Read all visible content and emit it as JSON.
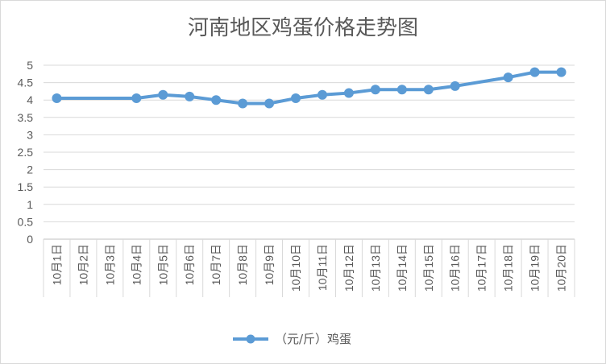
{
  "chart_data": {
    "type": "line",
    "title": "河南地区鸡蛋价格走势图",
    "xlabel": "",
    "ylabel": "",
    "categories": [
      "10月1日",
      "10月2日",
      "10月3日",
      "10月4日",
      "10月5日",
      "10月6日",
      "10月7日",
      "10月8日",
      "10月9日",
      "10月10日",
      "10月11日",
      "10月12日",
      "10月13日",
      "10月14日",
      "10月15日",
      "10月16日",
      "10月17日",
      "10月18日",
      "10月19日",
      "10月20日"
    ],
    "series": [
      {
        "name": "（元/斤）鸡蛋",
        "values": [
          4.05,
          null,
          null,
          4.05,
          4.15,
          4.1,
          4.0,
          3.9,
          3.9,
          4.05,
          4.15,
          4.2,
          4.3,
          4.3,
          4.3,
          4.4,
          null,
          4.65,
          4.8,
          4.8
        ]
      }
    ],
    "ylim": [
      0,
      5
    ],
    "yticks": [
      "0",
      "0.5",
      "1",
      "1.5",
      "2",
      "2.5",
      "3",
      "3.5",
      "4",
      "4.5",
      "5"
    ],
    "grid": "horizontal",
    "legend_position": "bottom",
    "colors": {
      "series": "#5b9bd5",
      "grid": "#d9d9d9",
      "text": "#595959"
    }
  }
}
